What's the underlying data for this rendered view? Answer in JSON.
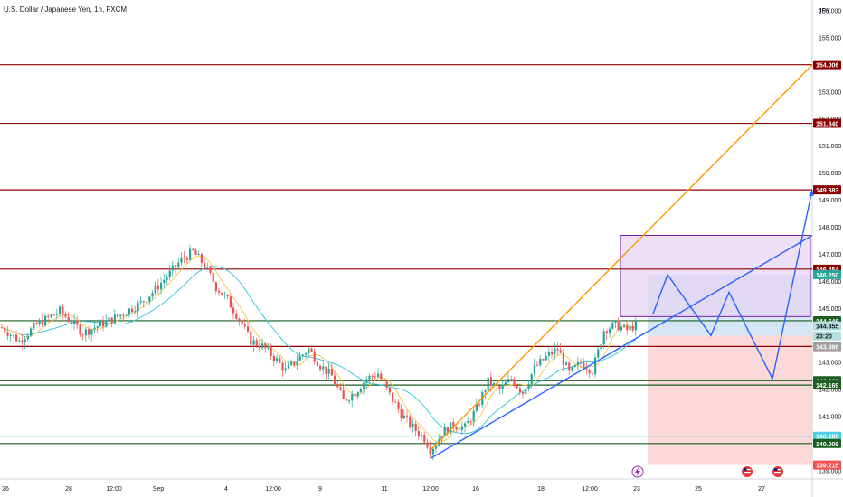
{
  "header": {
    "title": "U.S. Dollar / Japanese Yen, 1h, FXCM"
  },
  "currency": "JPY",
  "colors": {
    "up": "#26a69a",
    "down": "#ef5350",
    "resistance": "#8b0000",
    "support": "#1b5e20",
    "orange": "#ff9800",
    "blue": "#2962ff",
    "teal_ma": "#26c6da",
    "yellow_ma": "#f5c542",
    "purple_fill": "#e7d3f5",
    "purple_stroke": "#7b1fa2",
    "target_fill": "#cfe2f3",
    "stop_fill": "#fbd5d5",
    "cyan": "#4dd0e1"
  },
  "chart_data": {
    "type": "candlestick",
    "title": "U.S. Dollar / Japanese Yen, 1h, FXCM",
    "ylim": [
      138.7,
      156.4
    ],
    "y_ticks": [
      "156.000",
      "155.000",
      "154.000",
      "153.000",
      "152.000",
      "151.000",
      "150.000",
      "149.000",
      "148.000",
      "147.000",
      "146.000",
      "145.000",
      "144.000",
      "143.000",
      "142.000",
      "141.000",
      "140.000",
      "139.000"
    ],
    "x_ticks": [
      "26",
      "28",
      "12:00",
      "Sep",
      "4",
      "12:00",
      "9",
      "11",
      "12:00",
      "16",
      "18",
      "12:00",
      "23",
      "25",
      "27"
    ],
    "price_path": [
      [
        0,
        144.3
      ],
      [
        6,
        143.8
      ],
      [
        12,
        144.4
      ],
      [
        20,
        144.9
      ],
      [
        28,
        144.1
      ],
      [
        36,
        144.5
      ],
      [
        40,
        144.7
      ],
      [
        48,
        145.2
      ],
      [
        52,
        145.6
      ],
      [
        58,
        146.3
      ],
      [
        62,
        146.8
      ],
      [
        66,
        147.1
      ],
      [
        70,
        146.6
      ],
      [
        74,
        145.8
      ],
      [
        78,
        145.3
      ],
      [
        82,
        144.6
      ],
      [
        86,
        143.8
      ],
      [
        90,
        143.6
      ],
      [
        94,
        143.2
      ],
      [
        98,
        142.7
      ],
      [
        102,
        143.1
      ],
      [
        106,
        143.5
      ],
      [
        110,
        142.9
      ],
      [
        114,
        142.5
      ],
      [
        118,
        141.6
      ],
      [
        122,
        141.9
      ],
      [
        126,
        142.4
      ],
      [
        130,
        142.6
      ],
      [
        134,
        141.8
      ],
      [
        138,
        141.1
      ],
      [
        142,
        140.6
      ],
      [
        146,
        140.2
      ],
      [
        148,
        139.8
      ],
      [
        150,
        140.0
      ],
      [
        152,
        140.4
      ],
      [
        156,
        140.7
      ],
      [
        160,
        140.6
      ],
      [
        164,
        141.3
      ],
      [
        168,
        142.3
      ],
      [
        172,
        142.0
      ],
      [
        176,
        142.4
      ],
      [
        180,
        141.9
      ],
      [
        184,
        142.8
      ],
      [
        188,
        143.2
      ],
      [
        192,
        143.5
      ],
      [
        196,
        142.6
      ],
      [
        200,
        143.0
      ],
      [
        204,
        142.7
      ],
      [
        206,
        143.4
      ],
      [
        208,
        144.2
      ],
      [
        212,
        144.4
      ],
      [
        216,
        144.2
      ],
      [
        219,
        144.4
      ]
    ],
    "horizontal_levels": [
      {
        "label": "154.006",
        "value": 154.006,
        "kind": "resistance"
      },
      {
        "label": "151.840",
        "value": 151.84,
        "kind": "resistance"
      },
      {
        "label": "149.383",
        "value": 149.383,
        "kind": "resistance"
      },
      {
        "label": "146.454",
        "value": 146.454,
        "kind": "resistance"
      },
      {
        "label": "144.546",
        "value": 144.546,
        "kind": "support"
      },
      {
        "label": "143.597",
        "value": 143.597,
        "kind": "resistance"
      },
      {
        "label": "142.330",
        "value": 142.33,
        "kind": "support"
      },
      {
        "label": "142.169",
        "value": 142.169,
        "kind": "support"
      },
      {
        "label": "140.280",
        "value": 140.28,
        "kind": "cyan"
      },
      {
        "label": "140.009",
        "value": 140.009,
        "kind": "support"
      }
    ],
    "price_badges": [
      {
        "label": "146.250",
        "value": 146.25,
        "kind": "target"
      },
      {
        "label": "144.355",
        "value": 144.355,
        "kind": "current"
      },
      {
        "label": "23:20",
        "value": 143.986,
        "kind": "time"
      },
      {
        "label": "143.986",
        "value": 143.6,
        "kind": "entry"
      },
      {
        "label": "139.215",
        "value": 139.215,
        "kind": "stop"
      }
    ],
    "zones": {
      "purple": {
        "from": 144.7,
        "to": 147.7
      },
      "target": {
        "from": 144.0,
        "to": 146.25
      },
      "stop": {
        "from": 139.215,
        "to": 144.0
      }
    },
    "orange_channel": {
      "from_price": 139.75,
      "to_price": 154.0
    },
    "blue_trend": {
      "from_price": 139.45,
      "to_price": 147.7
    },
    "projection_path": [
      144.8,
      146.25,
      144.0,
      145.6,
      142.4,
      149.4
    ]
  }
}
